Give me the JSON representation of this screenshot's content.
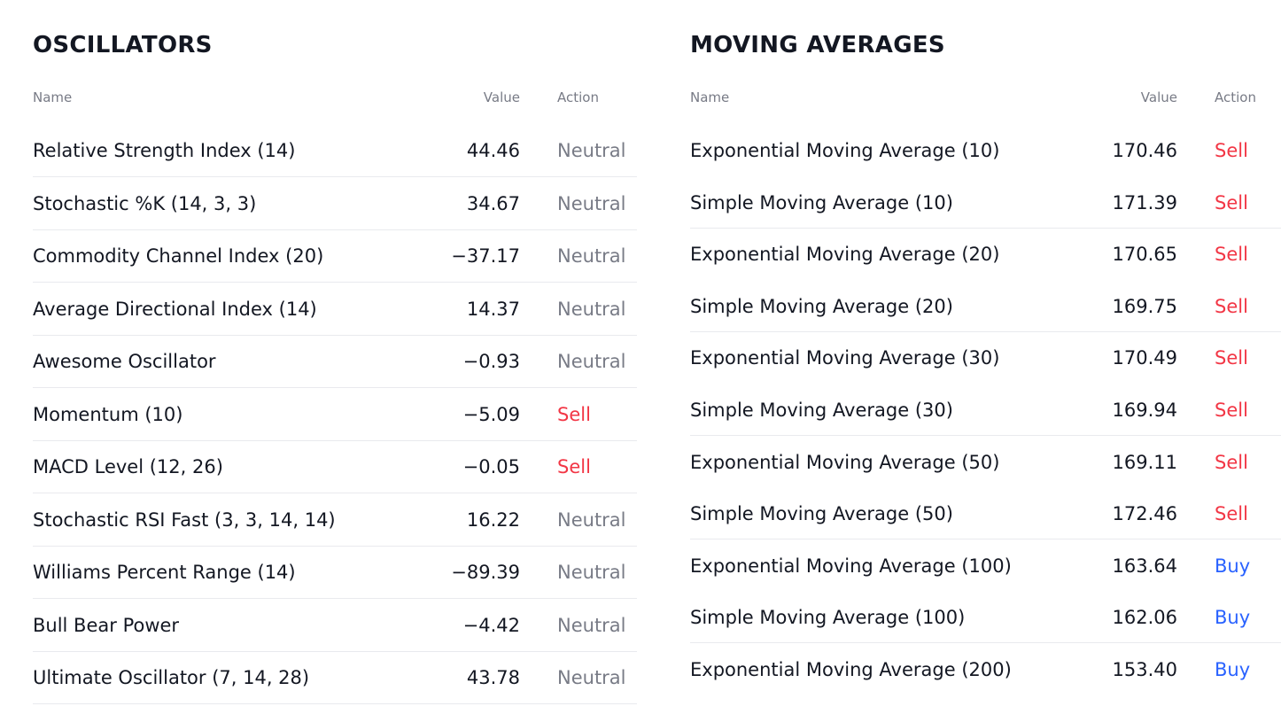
{
  "oscillators": {
    "title": "OSCILLATORS",
    "columns": {
      "name": "Name",
      "value": "Value",
      "action": "Action"
    },
    "rows": [
      {
        "name": "Relative Strength Index (14)",
        "value": "44.46",
        "action": "Neutral"
      },
      {
        "name": "Stochastic %K (14, 3, 3)",
        "value": "34.67",
        "action": "Neutral"
      },
      {
        "name": "Commodity Channel Index (20)",
        "value": "−37.17",
        "action": "Neutral"
      },
      {
        "name": "Average Directional Index (14)",
        "value": "14.37",
        "action": "Neutral"
      },
      {
        "name": "Awesome Oscillator",
        "value": "−0.93",
        "action": "Neutral"
      },
      {
        "name": "Momentum (10)",
        "value": "−5.09",
        "action": "Sell"
      },
      {
        "name": "MACD Level (12, 26)",
        "value": "−0.05",
        "action": "Sell"
      },
      {
        "name": "Stochastic RSI Fast (3, 3, 14, 14)",
        "value": "16.22",
        "action": "Neutral"
      },
      {
        "name": "Williams Percent Range (14)",
        "value": "−89.39",
        "action": "Neutral"
      },
      {
        "name": "Bull Bear Power",
        "value": "−4.42",
        "action": "Neutral"
      },
      {
        "name": "Ultimate Oscillator (7, 14, 28)",
        "value": "43.78",
        "action": "Neutral"
      }
    ]
  },
  "moving_averages": {
    "title": "MOVING AVERAGES",
    "columns": {
      "name": "Name",
      "value": "Value",
      "action": "Action"
    },
    "rows": [
      {
        "name": "Exponential Moving Average (10)",
        "value": "170.46",
        "action": "Sell"
      },
      {
        "name": "Simple Moving Average (10)",
        "value": "171.39",
        "action": "Sell"
      },
      {
        "name": "Exponential Moving Average (20)",
        "value": "170.65",
        "action": "Sell"
      },
      {
        "name": "Simple Moving Average (20)",
        "value": "169.75",
        "action": "Sell"
      },
      {
        "name": "Exponential Moving Average (30)",
        "value": "170.49",
        "action": "Sell"
      },
      {
        "name": "Simple Moving Average (30)",
        "value": "169.94",
        "action": "Sell"
      },
      {
        "name": "Exponential Moving Average (50)",
        "value": "169.11",
        "action": "Sell"
      },
      {
        "name": "Simple Moving Average (50)",
        "value": "172.46",
        "action": "Sell"
      },
      {
        "name": "Exponential Moving Average (100)",
        "value": "163.64",
        "action": "Buy"
      },
      {
        "name": "Simple Moving Average (100)",
        "value": "162.06",
        "action": "Buy"
      },
      {
        "name": "Exponential Moving Average (200)",
        "value": "153.40",
        "action": "Buy"
      }
    ]
  },
  "colors": {
    "text": "#131722",
    "muted": "#787b86",
    "sell": "#f23645",
    "buy": "#2962ff",
    "divider": "#e9eaee"
  }
}
